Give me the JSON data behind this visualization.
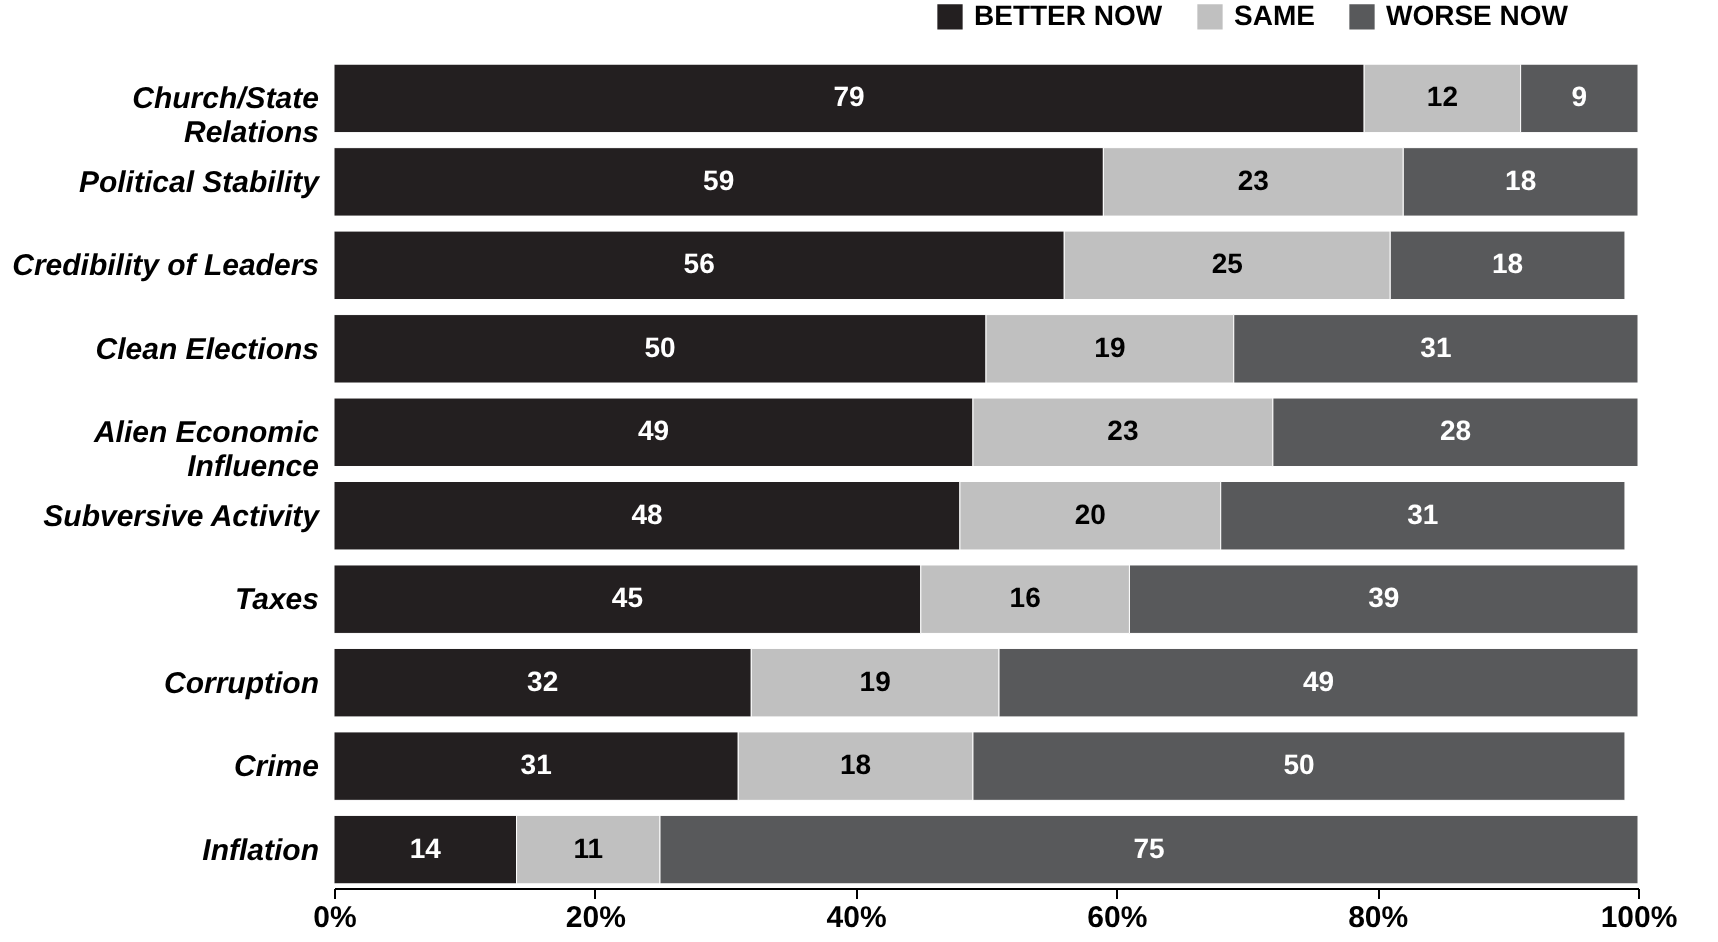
{
  "chart_data": {
    "type": "bar",
    "orientation": "horizontal",
    "stacked": true,
    "data_labels": true,
    "legend": "top right",
    "grid": false,
    "categories": [
      "Church/State\nRelations",
      "Political Stability",
      "Credibility of Leaders",
      "Clean Elections",
      "Alien Economic\nInfluence",
      "Subversive Activity",
      "Taxes",
      "Corruption",
      "Crime",
      "Inflation"
    ],
    "series": [
      {
        "name": "BETTER NOW",
        "color": "#231f20",
        "values": [
          79,
          59,
          56,
          50,
          49,
          48,
          45,
          32,
          31,
          14
        ]
      },
      {
        "name": "SAME",
        "color": "#c0c0c0",
        "values": [
          12,
          23,
          25,
          19,
          23,
          20,
          16,
          19,
          18,
          11
        ]
      },
      {
        "name": "WORSE NOW",
        "color": "#58595b",
        "values": [
          9,
          18,
          18,
          31,
          28,
          31,
          39,
          49,
          50,
          75
        ]
      }
    ],
    "xlim": [
      0,
      100
    ],
    "xticks": [
      {
        "value": 0,
        "label": "0%"
      },
      {
        "value": 20,
        "label": "20%"
      },
      {
        "value": 40,
        "label": "40%"
      },
      {
        "value": 60,
        "label": "60%"
      },
      {
        "value": 80,
        "label": "80%"
      },
      {
        "value": 100,
        "label": "100%"
      }
    ]
  }
}
